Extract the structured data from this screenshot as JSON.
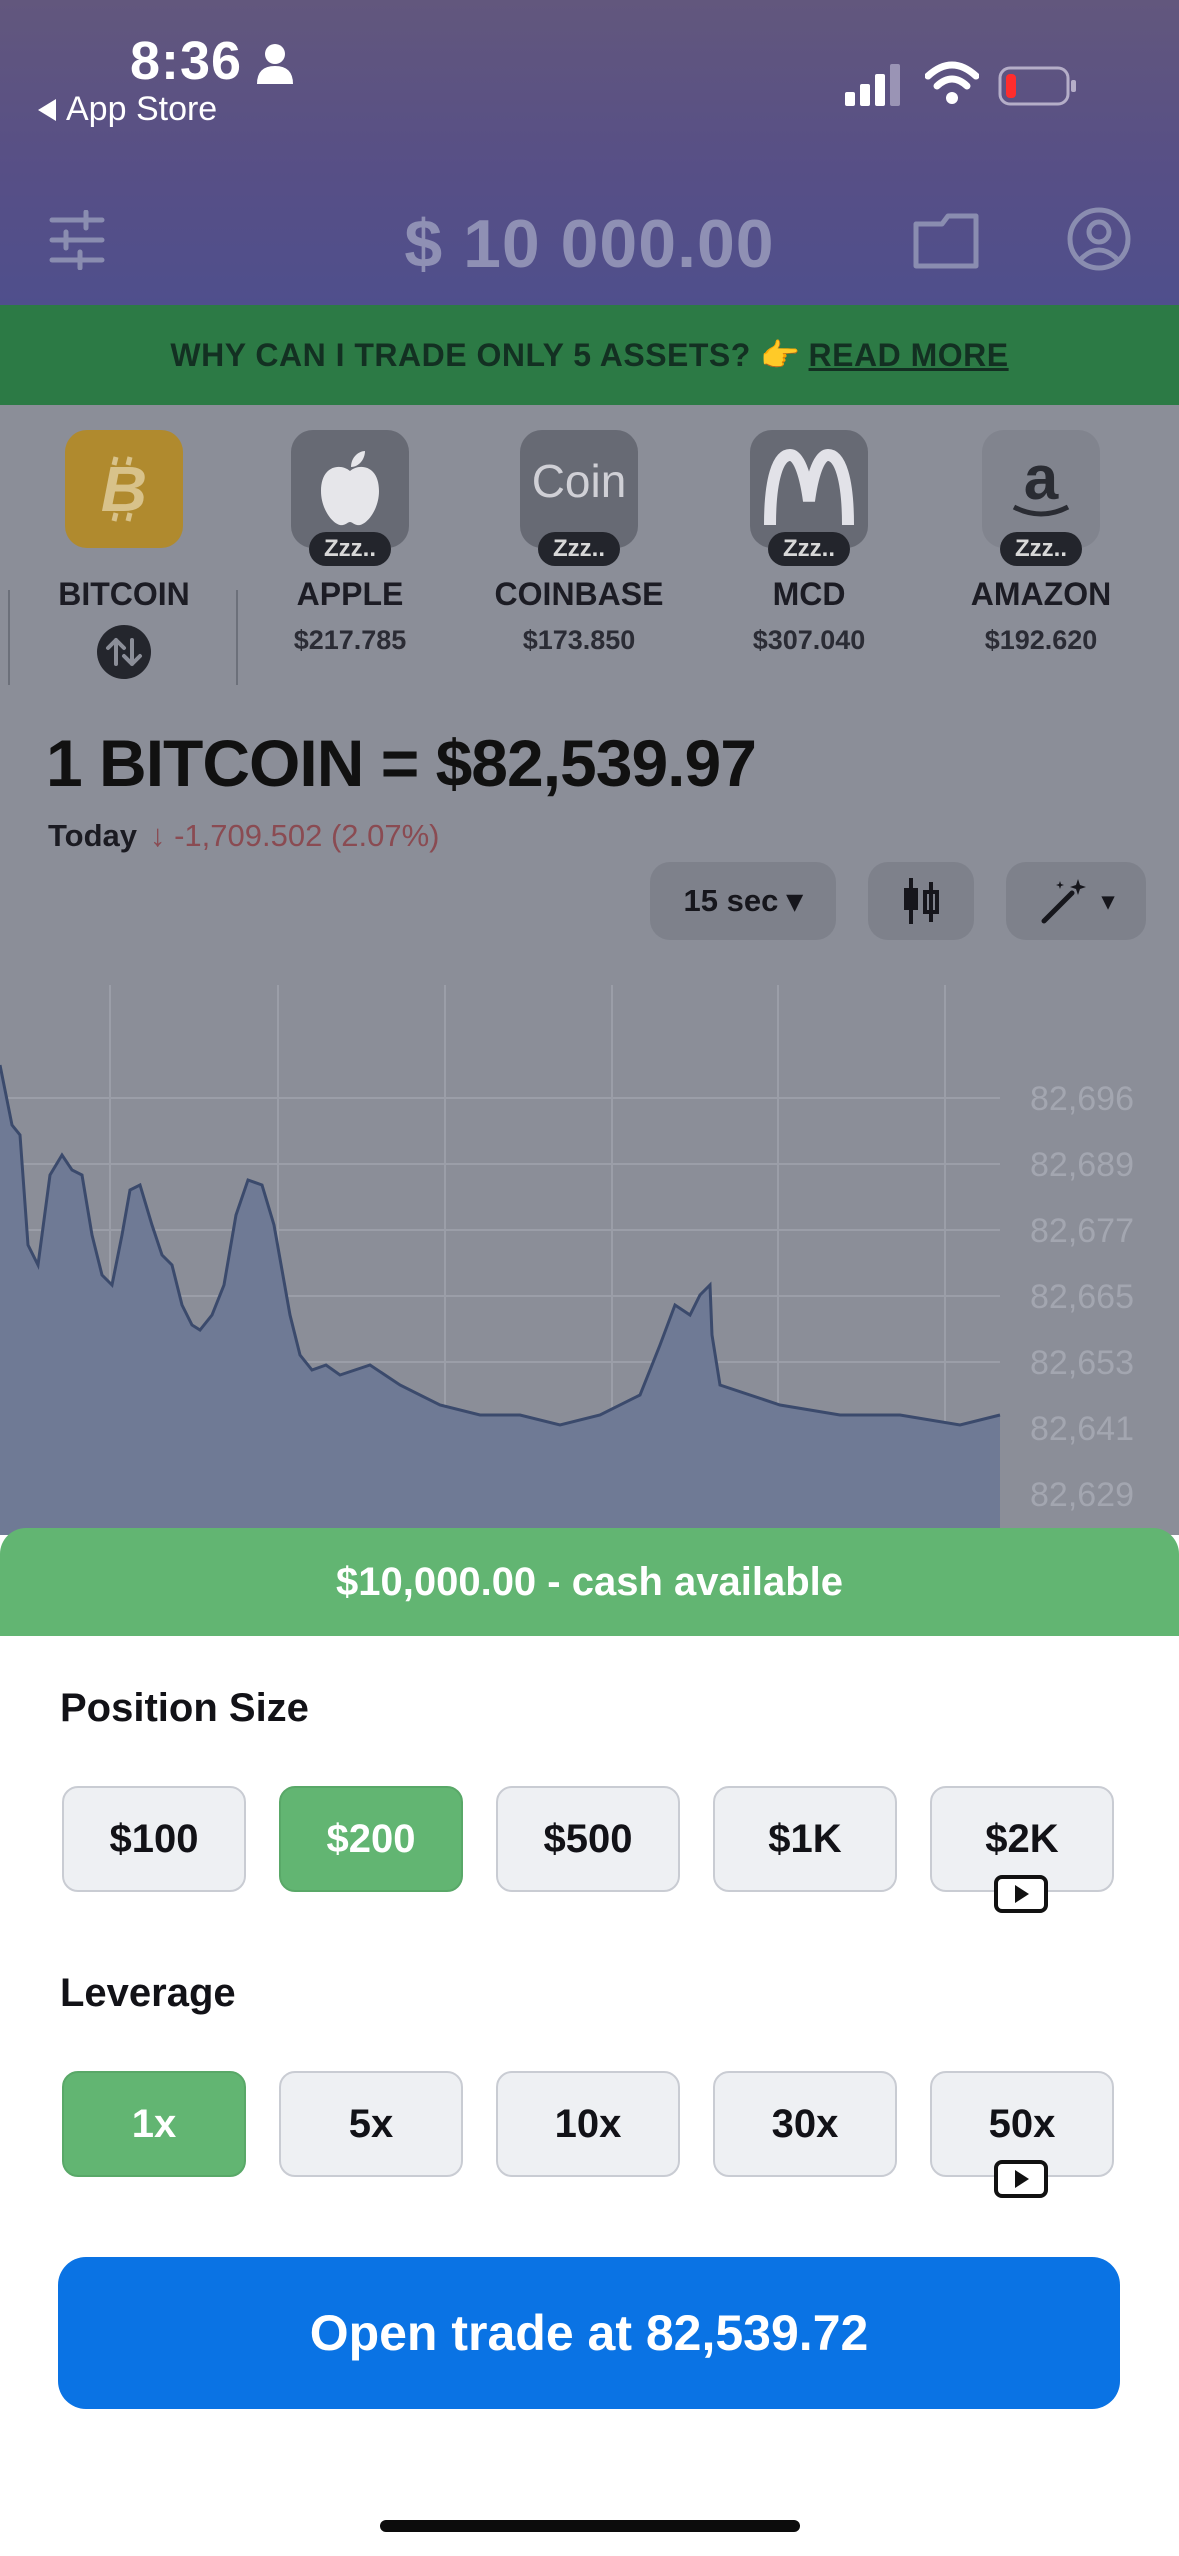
{
  "status_bar": {
    "time": "8:36",
    "back_label": "App Store"
  },
  "header": {
    "balance": "$ 10 000.00"
  },
  "banner": {
    "text": "WHY CAN I TRADE ONLY 5 ASSETS? 👉",
    "link": "READ MORE"
  },
  "assets": [
    {
      "name": "BITCOIN",
      "price": "",
      "badge": ""
    },
    {
      "name": "APPLE",
      "price": "$217.785",
      "badge": "Zzz.."
    },
    {
      "name": "COINBASE",
      "price": "$173.850",
      "badge": "Zzz..",
      "logo_text": "Coin"
    },
    {
      "name": "MCD",
      "price": "$307.040",
      "badge": "Zzz.."
    },
    {
      "name": "AMAZON",
      "price": "$192.620",
      "badge": "Zzz.."
    }
  ],
  "quote": {
    "title": "1 BITCOIN =  $82,539.97",
    "today_label": "Today",
    "change": "↓ -1,709.502 (2.07%)"
  },
  "chart_controls": {
    "interval": "15 sec ▾",
    "magic_caret": "▾"
  },
  "chart_data": {
    "type": "area",
    "y_ticks": [
      "82,696",
      "82,689",
      "82,677",
      "82,665",
      "82,653",
      "82,641",
      "82,629"
    ],
    "grid": true,
    "colors": {
      "line": "#3b4a6c",
      "fill": "#6f7a95"
    }
  },
  "sheet": {
    "cash_available": "$10,000.00 - cash available",
    "position_size_title": "Position Size",
    "position_sizes": [
      {
        "label": "$100",
        "selected": false,
        "video": false
      },
      {
        "label": "$200",
        "selected": true,
        "video": false
      },
      {
        "label": "$500",
        "selected": false,
        "video": false
      },
      {
        "label": "$1K",
        "selected": false,
        "video": false
      },
      {
        "label": "$2K",
        "selected": false,
        "video": true
      }
    ],
    "leverage_title": "Leverage",
    "leverages": [
      {
        "label": "1x",
        "selected": true,
        "video": false
      },
      {
        "label": "5x",
        "selected": false,
        "video": false
      },
      {
        "label": "10x",
        "selected": false,
        "video": false
      },
      {
        "label": "30x",
        "selected": false,
        "video": false
      },
      {
        "label": "50x",
        "selected": false,
        "video": true
      }
    ],
    "open_trade": "Open trade at 82,539.72"
  },
  "colors": {
    "accent_green": "#62b572",
    "primary_blue": "#0a73e4",
    "banner_green": "#2c7a45"
  }
}
